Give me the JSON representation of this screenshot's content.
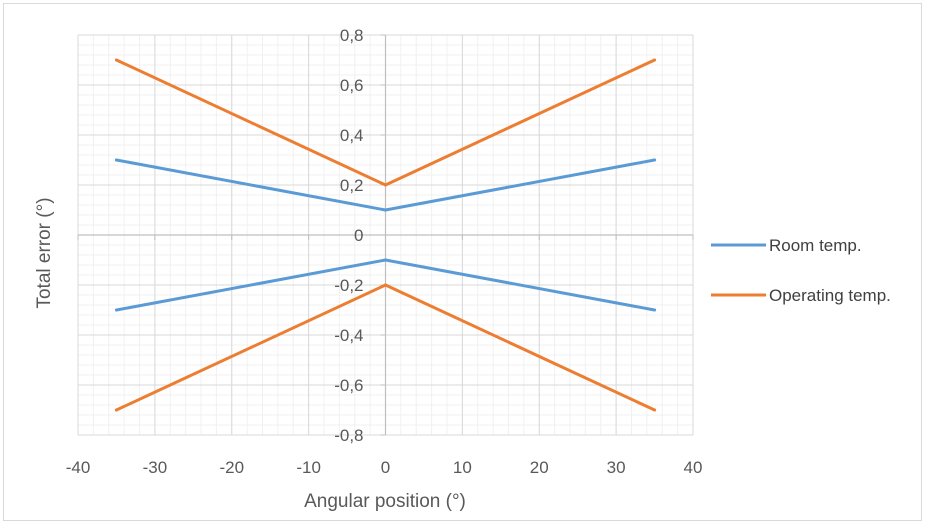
{
  "chart_data": {
    "type": "line",
    "title": "",
    "xlabel": "Angular position (°)",
    "ylabel": "Total error (°)",
    "xlim": [
      -40,
      40
    ],
    "ylim": [
      -0.8,
      0.8
    ],
    "x_ticks": [
      "-40",
      "-30",
      "-20",
      "-10",
      "0",
      "10",
      "20",
      "30",
      "40"
    ],
    "y_ticks": [
      "0,8",
      "0,6",
      "0,4",
      "0,2",
      "0",
      "-0,2",
      "-0,4",
      "-0,6",
      "-0,8"
    ],
    "grid": true,
    "legend_position": "right",
    "series": [
      {
        "name": "Room temp.",
        "color": "#5b9bd5",
        "x": [
          -35,
          0,
          35
        ],
        "y": [
          0.3,
          0.1,
          0.3
        ]
      },
      {
        "name": "Room temp.",
        "color": "#5b9bd5",
        "x": [
          -35,
          0,
          35
        ],
        "y": [
          -0.3,
          -0.1,
          -0.3
        ]
      },
      {
        "name": "Operating temp.",
        "color": "#ed7d31",
        "x": [
          -35,
          0,
          35
        ],
        "y": [
          0.7,
          0.2,
          0.7
        ]
      },
      {
        "name": "Operating temp.",
        "color": "#ed7d31",
        "x": [
          -35,
          0,
          35
        ],
        "y": [
          -0.7,
          -0.2,
          -0.7
        ]
      }
    ],
    "legend": [
      {
        "label": "Room temp.",
        "color": "#5b9bd5"
      },
      {
        "label": "Operating temp.",
        "color": "#ed7d31"
      }
    ]
  }
}
